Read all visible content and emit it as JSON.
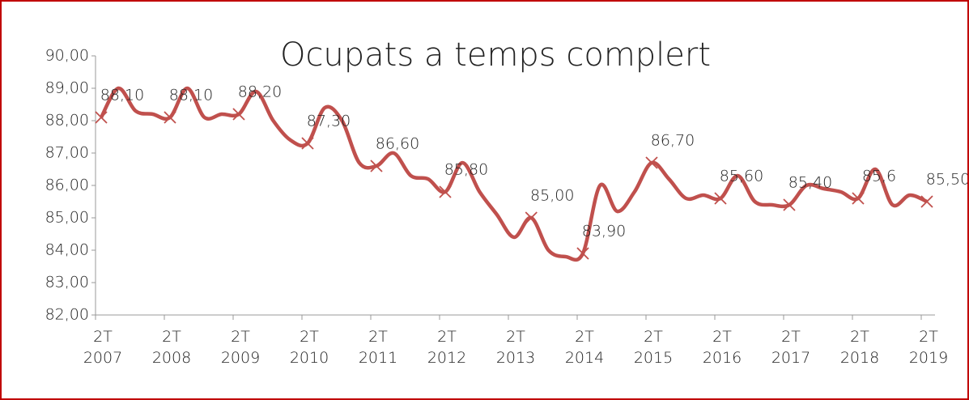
{
  "chart_data": {
    "type": "line",
    "title": "Ocupats a temps complert",
    "categories": [
      "2T 2007",
      null,
      null,
      null,
      "2T 2008",
      null,
      null,
      null,
      "2T 2009",
      null,
      null,
      null,
      "2T 2010",
      null,
      null,
      null,
      "2T 2011",
      null,
      null,
      null,
      "2T 2012",
      null,
      null,
      null,
      "2T 2013",
      null,
      null,
      null,
      "2T 2014",
      null,
      null,
      null,
      "2T 2015",
      null,
      null,
      null,
      "2T 2016",
      null,
      null,
      null,
      "2T 2017",
      null,
      null,
      null,
      "2T 2018",
      null,
      null,
      null,
      "2T 2019"
    ],
    "series": [
      {
        "name": "Ocupats a temps complert",
        "color": "#c0504d",
        "values": [
          88.1,
          89.0,
          88.3,
          88.2,
          88.1,
          89.0,
          88.1,
          88.2,
          88.2,
          88.9,
          88.0,
          87.4,
          87.3,
          88.4,
          88.0,
          86.7,
          86.6,
          87.0,
          86.3,
          86.2,
          85.8,
          86.7,
          85.8,
          85.1,
          84.4,
          85.0,
          84.0,
          83.8,
          83.9,
          86.0,
          85.2,
          85.8,
          86.7,
          86.2,
          85.6,
          85.7,
          85.6,
          86.3,
          85.5,
          85.4,
          85.4,
          86.0,
          85.9,
          85.8,
          85.6,
          86.5,
          85.4,
          85.7,
          85.5
        ],
        "value_labels": [
          "88,10",
          null,
          null,
          null,
          "88,10",
          null,
          null,
          null,
          "88,20",
          null,
          null,
          null,
          "87,30",
          null,
          null,
          null,
          "86,60",
          null,
          null,
          null,
          "85,80",
          null,
          null,
          null,
          null,
          "85,00",
          null,
          null,
          "83,90",
          null,
          null,
          null,
          "86,70",
          null,
          null,
          null,
          "85,60",
          null,
          null,
          null,
          "85,40",
          null,
          null,
          null,
          "85,6",
          null,
          null,
          null,
          "85,50"
        ]
      }
    ],
    "ylim": [
      82,
      90
    ],
    "yticks": [
      {
        "value": 82,
        "label": "82,00"
      },
      {
        "value": 83,
        "label": "83,00"
      },
      {
        "value": 84,
        "label": "84,00"
      },
      {
        "value": 85,
        "label": "85,00"
      },
      {
        "value": 86,
        "label": "86,00"
      },
      {
        "value": 87,
        "label": "87,00"
      },
      {
        "value": 88,
        "label": "88,00"
      },
      {
        "value": 89,
        "label": "89,00"
      },
      {
        "value": 90,
        "label": "90,00"
      }
    ]
  }
}
